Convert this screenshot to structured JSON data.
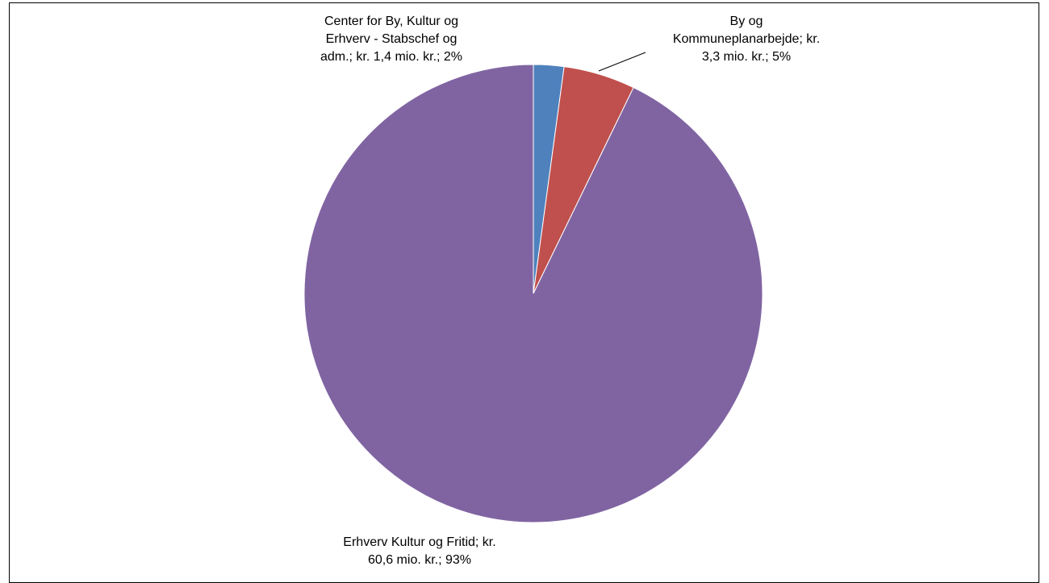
{
  "chart_data": {
    "type": "pie",
    "title": "",
    "slices": [
      {
        "name": "Center for By, Kultur og Erhverv - Stabschef og adm.",
        "value": 1.4,
        "percent": 2,
        "color": "#4F81BD",
        "label_lines": [
          "Center for By, Kultur og",
          "Erhverv - Stabschef og",
          "adm.; kr. 1,4 mio. kr.; 2%"
        ]
      },
      {
        "name": "By og Kommuneplanarbejde",
        "value": 3.3,
        "percent": 5,
        "color": "#C0504D",
        "label_lines": [
          "By og",
          "Kommuneplanarbejde; kr.",
          "3,3 mio. kr.; 5%"
        ]
      },
      {
        "name": "Erhverv Kultur og Fritid",
        "value": 60.6,
        "percent": 93,
        "color": "#8064A2",
        "label_lines": [
          "Erhverv Kultur og Fritid; kr.",
          "60,6 mio. kr.; 93%"
        ]
      }
    ],
    "start_angle": "12 o'clock",
    "direction": "clockwise",
    "legend": "none"
  }
}
